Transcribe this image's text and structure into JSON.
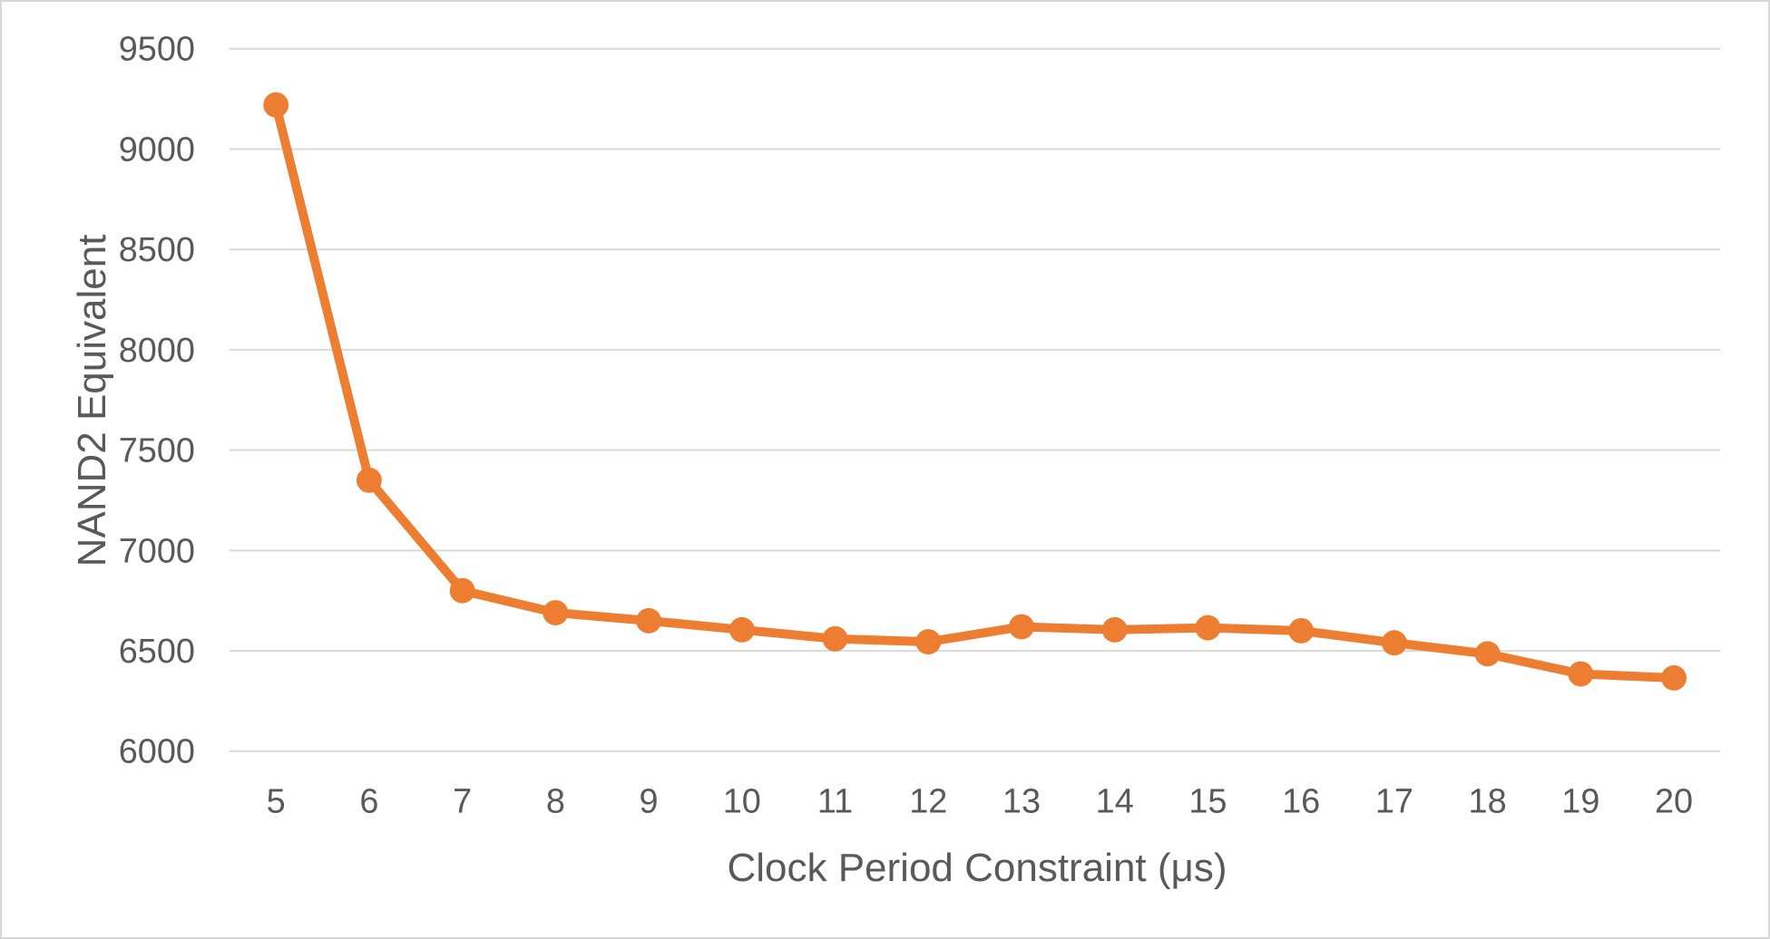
{
  "chart_data": {
    "type": "line",
    "title": "",
    "xlabel": "Clock Period Constraint (μs)",
    "ylabel": "NAND2 Equivalent",
    "x": [
      5,
      6,
      7,
      8,
      9,
      10,
      11,
      12,
      13,
      14,
      15,
      16,
      17,
      18,
      19,
      20
    ],
    "series": [
      {
        "name": "NAND2 Equivalent",
        "values": [
          9220,
          7350,
          6800,
          6690,
          6650,
          6605,
          6560,
          6545,
          6620,
          6605,
          6615,
          6600,
          6540,
          6485,
          6385,
          6365
        ]
      }
    ],
    "ylim": [
      6000,
      9500
    ],
    "ytick_step": 500,
    "yticks": [
      6000,
      6500,
      7000,
      7500,
      8000,
      8500,
      9000,
      9500
    ],
    "grid": "horizontal",
    "legend": "none",
    "marker": "circle",
    "colors": {
      "series": "#ED7D31",
      "grid": "#D9D9D9",
      "text": "#595959",
      "background": "#FFFFFF",
      "frame": "#D7D7D7"
    }
  }
}
